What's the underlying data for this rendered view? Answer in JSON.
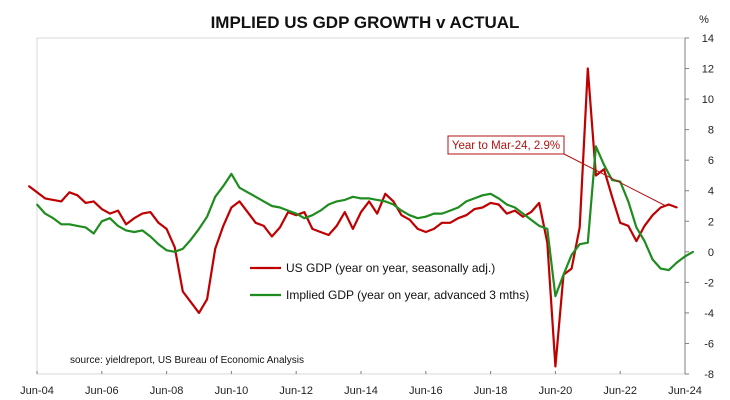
{
  "chart_data": {
    "type": "line",
    "title": "IMPLIED US GDP GROWTH v ACTUAL",
    "y_unit": "%",
    "ylim": [
      -8,
      14
    ],
    "y_ticks": [
      -8,
      -6,
      -4,
      -2,
      0,
      2,
      4,
      6,
      8,
      10,
      12,
      14
    ],
    "x_ticks": [
      "Jun-04",
      "Jun-06",
      "Jun-08",
      "Jun-10",
      "Jun-12",
      "Jun-14",
      "Jun-16",
      "Jun-18",
      "Jun-20",
      "Jun-22",
      "Jun-24"
    ],
    "grid": false,
    "legend_position": "lower-center",
    "source": "source: yieldreport, US Bureau of Economic Analysis",
    "annotation": "Year to Mar-24, 2.9%",
    "series": [
      {
        "name": "US GDP (year on year, seasonally adj.)",
        "color": "#c00000",
        "points": [
          [
            "2004-03",
            4.3
          ],
          [
            "2004-06",
            3.9
          ],
          [
            "2004-09",
            3.5
          ],
          [
            "2004-12",
            3.4
          ],
          [
            "2005-03",
            3.3
          ],
          [
            "2005-06",
            3.9
          ],
          [
            "2005-09",
            3.7
          ],
          [
            "2005-12",
            3.2
          ],
          [
            "2006-03",
            3.3
          ],
          [
            "2006-06",
            2.8
          ],
          [
            "2006-09",
            2.5
          ],
          [
            "2006-12",
            2.7
          ],
          [
            "2007-03",
            1.8
          ],
          [
            "2007-06",
            2.2
          ],
          [
            "2007-09",
            2.5
          ],
          [
            "2007-12",
            2.6
          ],
          [
            "2008-03",
            1.9
          ],
          [
            "2008-06",
            1.5
          ],
          [
            "2008-09",
            0.3
          ],
          [
            "2008-12",
            -2.6
          ],
          [
            "2009-03",
            -3.3
          ],
          [
            "2009-06",
            -4.0
          ],
          [
            "2009-09",
            -3.1
          ],
          [
            "2009-12",
            0.2
          ],
          [
            "2010-03",
            1.7
          ],
          [
            "2010-06",
            2.9
          ],
          [
            "2010-09",
            3.3
          ],
          [
            "2010-12",
            2.6
          ],
          [
            "2011-03",
            1.9
          ],
          [
            "2011-06",
            1.7
          ],
          [
            "2011-09",
            1.0
          ],
          [
            "2011-12",
            1.6
          ],
          [
            "2012-03",
            2.6
          ],
          [
            "2012-06",
            2.4
          ],
          [
            "2012-09",
            2.6
          ],
          [
            "2012-12",
            1.5
          ],
          [
            "2013-03",
            1.3
          ],
          [
            "2013-06",
            1.1
          ],
          [
            "2013-09",
            1.7
          ],
          [
            "2013-12",
            2.6
          ],
          [
            "2014-03",
            1.5
          ],
          [
            "2014-06",
            2.6
          ],
          [
            "2014-09",
            3.3
          ],
          [
            "2014-12",
            2.5
          ],
          [
            "2015-03",
            3.8
          ],
          [
            "2015-06",
            3.3
          ],
          [
            "2015-09",
            2.4
          ],
          [
            "2015-12",
            2.1
          ],
          [
            "2016-03",
            1.5
          ],
          [
            "2016-06",
            1.3
          ],
          [
            "2016-09",
            1.5
          ],
          [
            "2016-12",
            1.9
          ],
          [
            "2017-03",
            1.9
          ],
          [
            "2017-06",
            2.2
          ],
          [
            "2017-09",
            2.4
          ],
          [
            "2017-12",
            2.8
          ],
          [
            "2018-03",
            2.9
          ],
          [
            "2018-06",
            3.2
          ],
          [
            "2018-09",
            3.1
          ],
          [
            "2018-12",
            2.5
          ],
          [
            "2019-03",
            2.7
          ],
          [
            "2019-06",
            2.3
          ],
          [
            "2019-09",
            2.6
          ],
          [
            "2019-12",
            3.2
          ],
          [
            "2020-03",
            0.6
          ],
          [
            "2020-06",
            -7.5
          ],
          [
            "2020-09",
            -1.5
          ],
          [
            "2020-12",
            -1.1
          ],
          [
            "2021-03",
            1.6
          ],
          [
            "2021-06",
            12.0
          ],
          [
            "2021-09",
            5.0
          ],
          [
            "2021-12",
            5.4
          ],
          [
            "2022-03",
            3.6
          ],
          [
            "2022-06",
            1.9
          ],
          [
            "2022-09",
            1.7
          ],
          [
            "2022-12",
            0.7
          ],
          [
            "2023-03",
            1.7
          ],
          [
            "2023-06",
            2.4
          ],
          [
            "2023-09",
            2.9
          ],
          [
            "2023-12",
            3.1
          ],
          [
            "2024-03",
            2.9
          ]
        ]
      },
      {
        "name": "Implied GDP (year on year, advanced 3 mths)",
        "color": "#1f8c1f",
        "points": [
          [
            "2004-06",
            3.1
          ],
          [
            "2004-09",
            2.5
          ],
          [
            "2004-12",
            2.2
          ],
          [
            "2005-03",
            1.8
          ],
          [
            "2005-06",
            1.8
          ],
          [
            "2005-09",
            1.7
          ],
          [
            "2005-12",
            1.6
          ],
          [
            "2006-03",
            1.2
          ],
          [
            "2006-06",
            2.0
          ],
          [
            "2006-09",
            2.2
          ],
          [
            "2006-12",
            1.7
          ],
          [
            "2007-03",
            1.4
          ],
          [
            "2007-06",
            1.3
          ],
          [
            "2007-09",
            1.4
          ],
          [
            "2007-12",
            1.0
          ],
          [
            "2008-03",
            0.5
          ],
          [
            "2008-06",
            0.1
          ],
          [
            "2008-09",
            0.0
          ],
          [
            "2008-12",
            0.2
          ],
          [
            "2009-03",
            0.8
          ],
          [
            "2009-06",
            1.5
          ],
          [
            "2009-09",
            2.3
          ],
          [
            "2009-12",
            3.6
          ],
          [
            "2010-03",
            4.3
          ],
          [
            "2010-06",
            5.1
          ],
          [
            "2010-09",
            4.2
          ],
          [
            "2010-12",
            3.9
          ],
          [
            "2011-03",
            3.6
          ],
          [
            "2011-06",
            3.3
          ],
          [
            "2011-09",
            3.0
          ],
          [
            "2011-12",
            2.9
          ],
          [
            "2012-03",
            2.7
          ],
          [
            "2012-06",
            2.5
          ],
          [
            "2012-09",
            2.2
          ],
          [
            "2012-12",
            2.4
          ],
          [
            "2013-03",
            2.7
          ],
          [
            "2013-06",
            3.1
          ],
          [
            "2013-09",
            3.3
          ],
          [
            "2013-12",
            3.4
          ],
          [
            "2014-03",
            3.6
          ],
          [
            "2014-06",
            3.5
          ],
          [
            "2014-09",
            3.5
          ],
          [
            "2014-12",
            3.4
          ],
          [
            "2015-03",
            3.3
          ],
          [
            "2015-06",
            3.1
          ],
          [
            "2015-09",
            2.7
          ],
          [
            "2015-12",
            2.4
          ],
          [
            "2016-03",
            2.2
          ],
          [
            "2016-06",
            2.3
          ],
          [
            "2016-09",
            2.5
          ],
          [
            "2016-12",
            2.5
          ],
          [
            "2017-03",
            2.7
          ],
          [
            "2017-06",
            2.9
          ],
          [
            "2017-09",
            3.3
          ],
          [
            "2017-12",
            3.5
          ],
          [
            "2018-03",
            3.7
          ],
          [
            "2018-06",
            3.8
          ],
          [
            "2018-09",
            3.5
          ],
          [
            "2018-12",
            3.1
          ],
          [
            "2019-03",
            2.9
          ],
          [
            "2019-06",
            2.5
          ],
          [
            "2019-09",
            2.1
          ],
          [
            "2019-12",
            1.7
          ],
          [
            "2020-03",
            1.5
          ],
          [
            "2020-06",
            -2.9
          ],
          [
            "2020-09",
            -1.5
          ],
          [
            "2020-12",
            -0.2
          ],
          [
            "2021-03",
            0.5
          ],
          [
            "2021-06",
            0.6
          ],
          [
            "2021-09",
            6.9
          ],
          [
            "2021-12",
            5.7
          ],
          [
            "2022-03",
            4.7
          ],
          [
            "2022-06",
            4.6
          ],
          [
            "2022-09",
            3.3
          ],
          [
            "2022-12",
            1.6
          ],
          [
            "2023-03",
            0.7
          ],
          [
            "2023-06",
            -0.5
          ],
          [
            "2023-09",
            -1.1
          ],
          [
            "2023-12",
            -1.2
          ],
          [
            "2024-03",
            -0.7
          ],
          [
            "2024-06",
            -0.3
          ],
          [
            "2024-09",
            0.0
          ]
        ]
      }
    ]
  }
}
